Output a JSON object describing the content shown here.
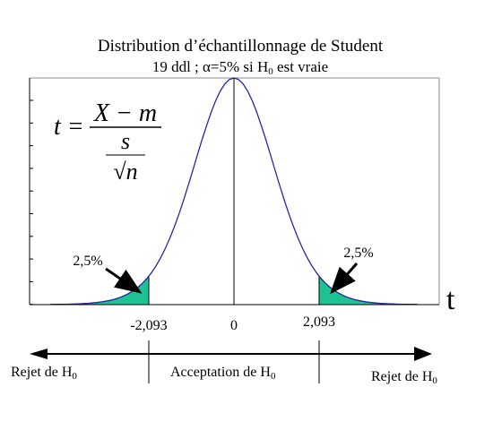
{
  "title": {
    "line1": "Distribution d’échantillonnage de Student",
    "line2_main": "19 ddl ; α=5% si H",
    "line2_sub": "0",
    "line2_end": " est vraie"
  },
  "formula": {
    "lhs": "t =",
    "numerator": "X − m",
    "denominator_top": "s",
    "denominator_bottom": "√n"
  },
  "axis_label": "t",
  "ticks": [
    "-2,093",
    "0",
    "2,093"
  ],
  "tail_labels": [
    "2,5%",
    "2,5%"
  ],
  "regions": [
    {
      "main": "Rejet de H",
      "sub": "0"
    },
    {
      "main": "Acceptation de H",
      "sub": "0"
    },
    {
      "main": "Rejet de H",
      "sub": "0"
    }
  ]
}
